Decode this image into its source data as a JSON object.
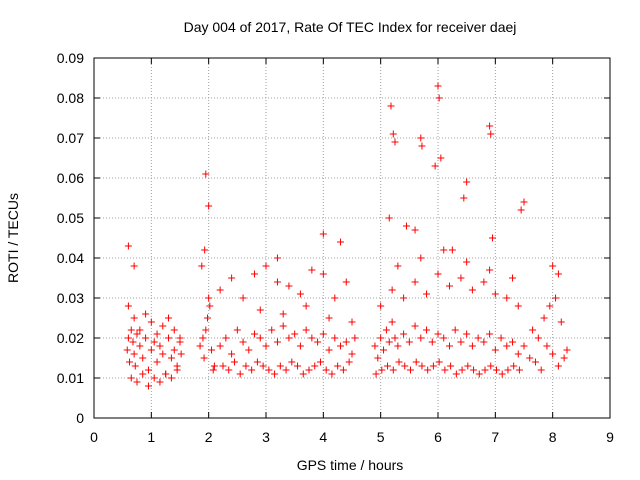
{
  "chart_data": {
    "type": "scatter",
    "title": "Day 004 of 2017, Rate Of TEC Index for receiver daej",
    "xlabel": "GPS time / hours",
    "ylabel": "ROTI / TECUs",
    "xlim": [
      0,
      9
    ],
    "ylim": [
      0,
      0.09
    ],
    "x_ticks": [
      0,
      1,
      2,
      3,
      4,
      5,
      6,
      7,
      8,
      9
    ],
    "y_ticks": [
      0,
      0.01,
      0.02,
      0.03,
      0.04,
      0.05,
      0.06,
      0.07,
      0.08,
      0.09
    ],
    "x_tick_labels": [
      "0",
      "1",
      "2",
      "3",
      "4",
      "5",
      "6",
      "7",
      "8",
      "9"
    ],
    "y_tick_labels": [
      "0",
      "0.01",
      "0.02",
      "0.03",
      "0.04",
      "0.05",
      "0.06",
      "0.07",
      "0.08",
      "0.09"
    ],
    "grid": true,
    "marker": "+",
    "marker_color": "#ff0000",
    "series": [
      {
        "name": "ROTI",
        "x": [
          0.58,
          0.6,
          0.62,
          0.65,
          0.68,
          0.7,
          0.72,
          0.75,
          0.8,
          0.85,
          0.9,
          0.95,
          1.0,
          1.05,
          1.1,
          1.15,
          1.2,
          1.25,
          1.3,
          1.35,
          1.4,
          1.45,
          1.5,
          1.52,
          0.6,
          0.7,
          0.8,
          0.9,
          1.0,
          1.1,
          1.2,
          1.3,
          1.4,
          1.5,
          0.65,
          0.75,
          0.85,
          0.95,
          1.05,
          1.15,
          1.25,
          1.35,
          1.45,
          1.85,
          1.9,
          1.92,
          1.95,
          1.98,
          2.0,
          2.05,
          2.1,
          1.88,
          1.93,
          2.02,
          2.08,
          2.2,
          2.3,
          2.4,
          2.5,
          2.6,
          2.7,
          2.8,
          2.9,
          3.0,
          3.1,
          3.2,
          3.3,
          3.4,
          3.5,
          3.6,
          3.7,
          3.8,
          3.9,
          4.0,
          4.1,
          4.2,
          4.3,
          4.4,
          4.5,
          4.55,
          2.25,
          2.35,
          2.45,
          2.55,
          2.65,
          2.75,
          2.85,
          2.95,
          3.05,
          3.15,
          3.25,
          3.35,
          3.45,
          3.55,
          3.65,
          3.75,
          3.85,
          3.95,
          4.05,
          4.15,
          4.25,
          4.35,
          4.45,
          2.2,
          2.4,
          2.6,
          2.8,
          3.0,
          3.2,
          3.4,
          3.6,
          3.8,
          4.0,
          4.2,
          4.4,
          2.9,
          3.3,
          3.7,
          4.1,
          4.5,
          4.9,
          4.95,
          5.0,
          5.05,
          5.1,
          5.15,
          5.2,
          5.25,
          5.3,
          5.4,
          5.5,
          5.6,
          5.7,
          5.8,
          5.9,
          6.0,
          6.1,
          6.2,
          6.3,
          6.4,
          6.5,
          6.6,
          6.7,
          6.8,
          6.9,
          7.0,
          7.1,
          7.2,
          7.3,
          7.4,
          7.5,
          4.92,
          5.02,
          5.12,
          5.22,
          5.32,
          5.42,
          5.52,
          5.62,
          5.72,
          5.82,
          5.92,
          6.02,
          6.12,
          6.22,
          6.32,
          6.42,
          6.52,
          6.62,
          6.72,
          6.82,
          6.92,
          7.02,
          7.12,
          7.22,
          7.32,
          7.42,
          5.0,
          5.2,
          5.4,
          5.6,
          5.8,
          6.0,
          6.2,
          6.4,
          6.6,
          6.8,
          7.0,
          7.2,
          7.4,
          5.3,
          5.7,
          6.1,
          6.5,
          6.9,
          7.3,
          7.6,
          7.7,
          7.8,
          7.9,
          8.0,
          8.1,
          8.2,
          8.25,
          7.65,
          7.75,
          7.85,
          7.95,
          8.05,
          8.15,
          5.18,
          5.22,
          5.25,
          5.7,
          5.72,
          6.0,
          6.02,
          6.05,
          6.9,
          6.92,
          6.95,
          5.95,
          6.5,
          1.95,
          2.0,
          0.6,
          0.7,
          3.2,
          4.0,
          4.3,
          5.15,
          5.45,
          5.6,
          6.25,
          6.45,
          7.45,
          7.5,
          8.0,
          8.1
        ],
        "y": [
          0.017,
          0.02,
          0.014,
          0.022,
          0.019,
          0.016,
          0.013,
          0.021,
          0.018,
          0.015,
          0.02,
          0.012,
          0.017,
          0.019,
          0.014,
          0.018,
          0.016,
          0.011,
          0.02,
          0.015,
          0.017,
          0.013,
          0.019,
          0.016,
          0.028,
          0.025,
          0.022,
          0.026,
          0.024,
          0.021,
          0.023,
          0.025,
          0.022,
          0.02,
          0.01,
          0.009,
          0.011,
          0.008,
          0.01,
          0.009,
          0.011,
          0.01,
          0.012,
          0.018,
          0.02,
          0.015,
          0.022,
          0.025,
          0.03,
          0.017,
          0.013,
          0.038,
          0.042,
          0.028,
          0.012,
          0.018,
          0.02,
          0.016,
          0.022,
          0.019,
          0.017,
          0.021,
          0.02,
          0.018,
          0.022,
          0.019,
          0.023,
          0.02,
          0.021,
          0.018,
          0.022,
          0.02,
          0.019,
          0.021,
          0.017,
          0.02,
          0.018,
          0.019,
          0.016,
          0.02,
          0.013,
          0.012,
          0.014,
          0.011,
          0.013,
          0.012,
          0.014,
          0.013,
          0.012,
          0.011,
          0.013,
          0.012,
          0.014,
          0.013,
          0.011,
          0.012,
          0.013,
          0.014,
          0.012,
          0.011,
          0.013,
          0.012,
          0.014,
          0.032,
          0.035,
          0.03,
          0.036,
          0.038,
          0.034,
          0.033,
          0.031,
          0.037,
          0.036,
          0.03,
          0.034,
          0.027,
          0.026,
          0.028,
          0.025,
          0.024,
          0.018,
          0.015,
          0.02,
          0.017,
          0.022,
          0.019,
          0.024,
          0.02,
          0.018,
          0.021,
          0.019,
          0.023,
          0.02,
          0.022,
          0.019,
          0.021,
          0.02,
          0.018,
          0.022,
          0.019,
          0.021,
          0.018,
          0.02,
          0.019,
          0.021,
          0.017,
          0.02,
          0.018,
          0.019,
          0.016,
          0.018,
          0.011,
          0.012,
          0.013,
          0.012,
          0.014,
          0.013,
          0.012,
          0.014,
          0.013,
          0.012,
          0.013,
          0.014,
          0.012,
          0.013,
          0.011,
          0.012,
          0.013,
          0.012,
          0.011,
          0.012,
          0.013,
          0.012,
          0.011,
          0.012,
          0.013,
          0.012,
          0.028,
          0.032,
          0.03,
          0.034,
          0.031,
          0.036,
          0.033,
          0.035,
          0.032,
          0.034,
          0.031,
          0.03,
          0.028,
          0.038,
          0.04,
          0.042,
          0.039,
          0.037,
          0.035,
          0.015,
          0.014,
          0.012,
          0.018,
          0.016,
          0.013,
          0.015,
          0.017,
          0.022,
          0.02,
          0.025,
          0.028,
          0.03,
          0.024,
          0.078,
          0.071,
          0.069,
          0.07,
          0.068,
          0.083,
          0.08,
          0.065,
          0.073,
          0.071,
          0.045,
          0.063,
          0.059,
          0.061,
          0.053,
          0.043,
          0.038,
          0.04,
          0.046,
          0.044,
          0.05,
          0.048,
          0.047,
          0.042,
          0.055,
          0.052,
          0.054,
          0.038,
          0.036
        ]
      }
    ]
  }
}
